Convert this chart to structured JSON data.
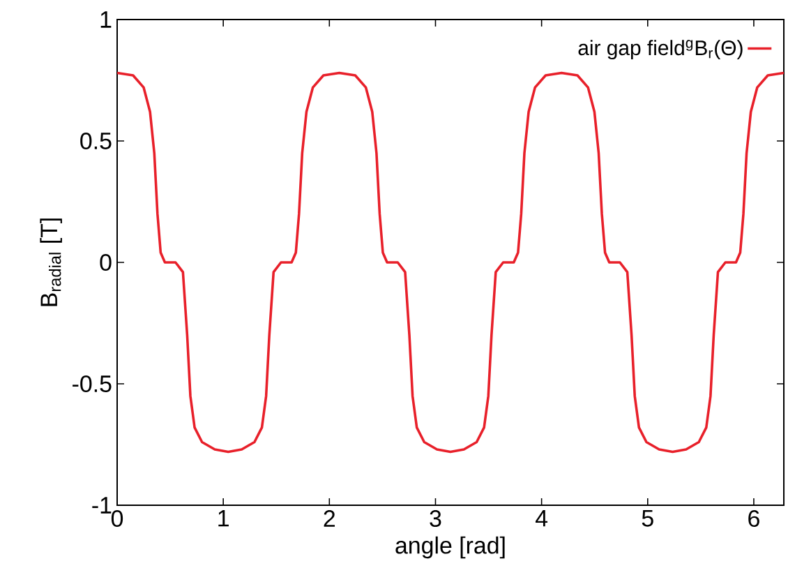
{
  "chart_data": {
    "type": "line",
    "xlabel": "angle [rad]",
    "ylabel": "B$_{radial}$ [T]",
    "xlim": [
      0,
      6.283
    ],
    "ylim": [
      -1,
      1
    ],
    "xticks": [
      0,
      1,
      2,
      3,
      4,
      5,
      6
    ],
    "yticks": [
      -1,
      -0.5,
      0,
      0.5,
      1
    ],
    "grid": false,
    "legend": "top right",
    "line_style": "solid",
    "marker": "none",
    "series": [
      {
        "name": "air gap field$^{g}$B$_{r}$(Θ)",
        "color": "#e8202a",
        "x": [
          0,
          0.15,
          0.25,
          0.31,
          0.35,
          0.38,
          0.41,
          0.45,
          0.55,
          0.62,
          0.66,
          0.69,
          0.73,
          0.8,
          0.92,
          1.047,
          1.174,
          1.294,
          1.364,
          1.404,
          1.434,
          1.474,
          1.544,
          1.644,
          1.684,
          1.714,
          1.744,
          1.784,
          1.844,
          1.944,
          2.094,
          2.244,
          2.344,
          2.404,
          2.444,
          2.474,
          2.504,
          2.544,
          2.644,
          2.714,
          2.754,
          2.784,
          2.824,
          2.894,
          3.014,
          3.141,
          3.268,
          3.388,
          3.458,
          3.498,
          3.528,
          3.568,
          3.638,
          3.738,
          3.778,
          3.808,
          3.838,
          3.878,
          3.938,
          4.038,
          4.188,
          4.338,
          4.438,
          4.498,
          4.538,
          4.568,
          4.598,
          4.638,
          4.738,
          4.808,
          4.848,
          4.878,
          4.918,
          4.988,
          5.108,
          5.235,
          5.362,
          5.482,
          5.552,
          5.592,
          5.622,
          5.662,
          5.732,
          5.832,
          5.872,
          5.902,
          5.932,
          5.972,
          6.032,
          6.132,
          6.283
        ],
        "values": [
          0.78,
          0.77,
          0.72,
          0.62,
          0.45,
          0.2,
          0.04,
          0,
          0,
          -0.04,
          -0.3,
          -0.55,
          -0.68,
          -0.74,
          -0.77,
          -0.78,
          -0.77,
          -0.74,
          -0.68,
          -0.55,
          -0.3,
          -0.04,
          0,
          0,
          0.04,
          0.2,
          0.45,
          0.62,
          0.72,
          0.77,
          0.78,
          0.77,
          0.72,
          0.62,
          0.45,
          0.2,
          0.04,
          0,
          0,
          -0.04,
          -0.3,
          -0.55,
          -0.68,
          -0.74,
          -0.77,
          -0.78,
          -0.77,
          -0.74,
          -0.68,
          -0.55,
          -0.3,
          -0.04,
          0,
          0,
          0.04,
          0.2,
          0.45,
          0.62,
          0.72,
          0.77,
          0.78,
          0.77,
          0.72,
          0.62,
          0.45,
          0.2,
          0.04,
          0,
          0,
          -0.04,
          -0.3,
          -0.55,
          -0.68,
          -0.74,
          -0.77,
          -0.78,
          -0.77,
          -0.74,
          -0.68,
          -0.55,
          -0.3,
          -0.04,
          0,
          0,
          0.04,
          0.2,
          0.45,
          0.62,
          0.72,
          0.77,
          0.78
        ]
      }
    ]
  }
}
